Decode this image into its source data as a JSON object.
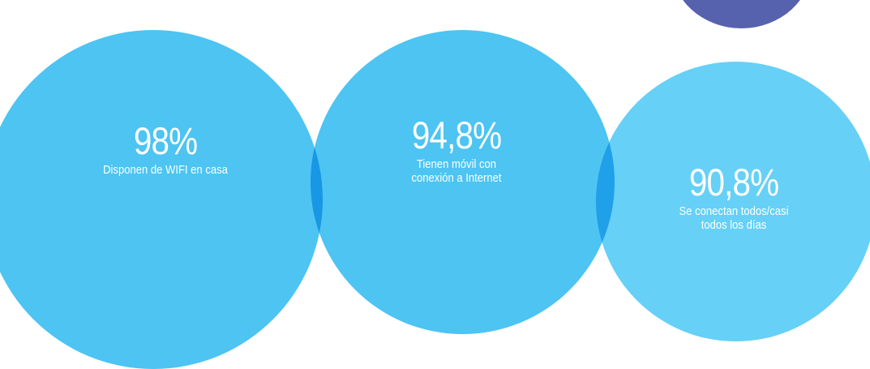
{
  "stats": [
    {
      "value": "98%",
      "label": "Disponen de WIFI en casa"
    },
    {
      "value": "94,8%",
      "label_line1": "Tienen móvil con",
      "label_line2": "conexión a Internet"
    },
    {
      "value": "90,8%",
      "label_line1": "Se conectan todos/casi",
      "label_line2": "todos los días"
    }
  ],
  "colors": {
    "bubble_primary": "#4dc4f2",
    "bubble_light": "#66d0f6",
    "bubble_accent": "#5762ae",
    "text": "#ffffff"
  }
}
